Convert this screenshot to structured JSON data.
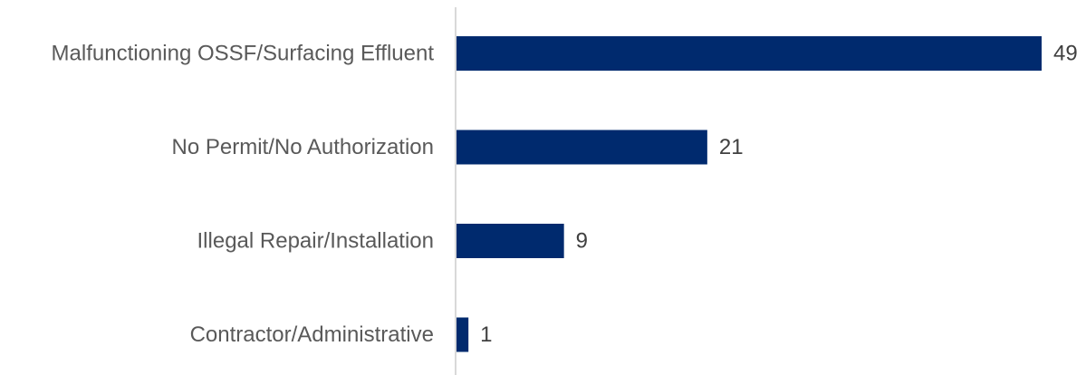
{
  "chart_data": {
    "type": "bar",
    "orientation": "horizontal",
    "title": "",
    "xlabel": "",
    "ylabel": "",
    "categories": [
      "Malfunctioning OSSF/Surfacing Effluent",
      "No Permit/No Authorization",
      "Illegal Repair/Installation",
      "Contractor/Administrative"
    ],
    "values": [
      49,
      21,
      9,
      1
    ],
    "value_labels": [
      "49",
      "21",
      "9",
      "1"
    ],
    "xlim": [
      0,
      49
    ],
    "grid": false,
    "legend": "none",
    "data_labels": true,
    "colors": {
      "bar": "#002a6e",
      "axis": "#d9d9d9",
      "category_text": "#595959",
      "value_text": "#404040"
    }
  }
}
